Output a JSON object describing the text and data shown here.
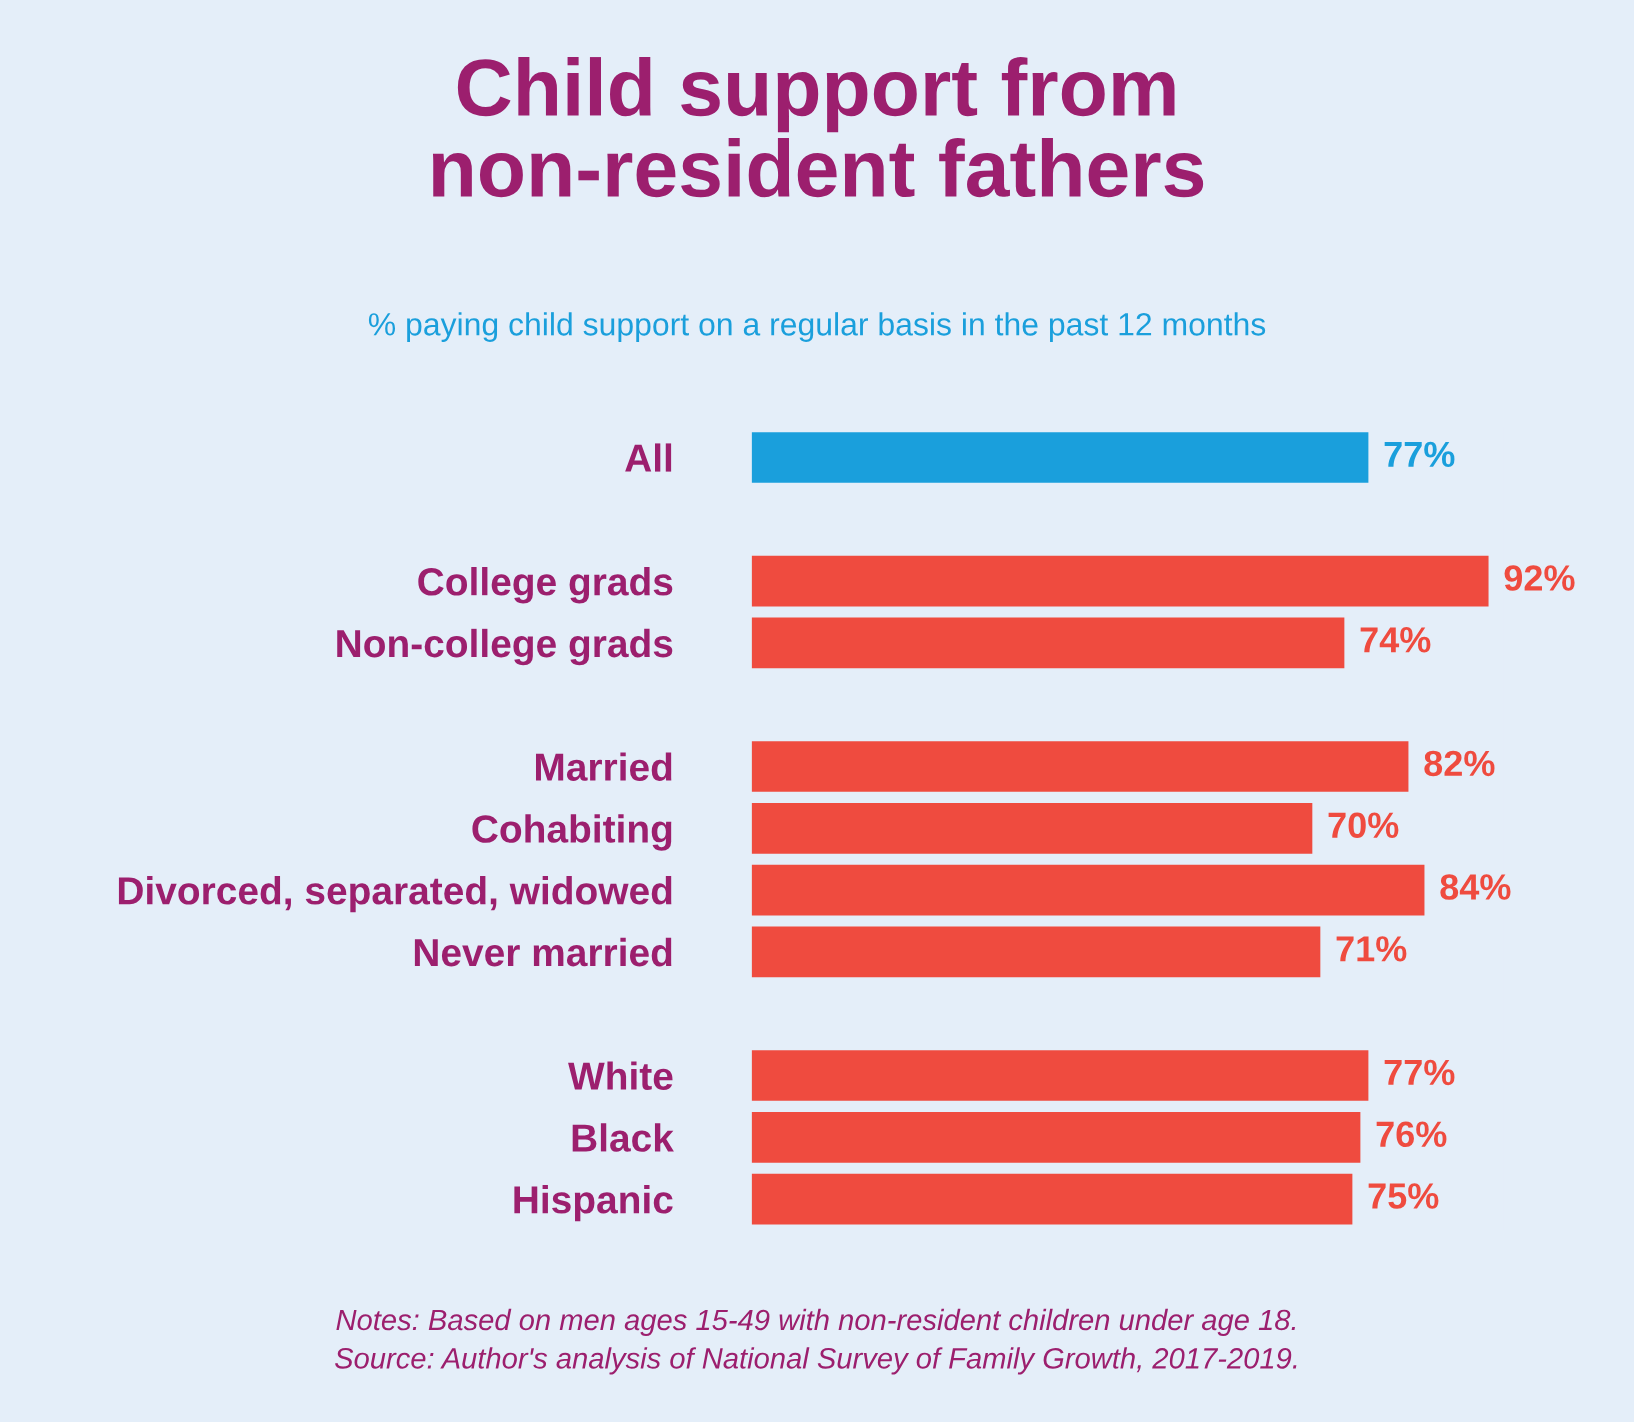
{
  "chart_data": {
    "type": "bar",
    "orientation": "horizontal",
    "title": "Child support from\nnon-resident fathers",
    "subtitle": "% paying child support on a regular basis in the past 12 months",
    "categories": [
      "All",
      null,
      "College grads",
      "Non-college grads",
      null,
      "Married",
      "Cohabiting",
      "Divorced, separated, widowed",
      "Never married",
      null,
      "White",
      "Black",
      "Hispanic"
    ],
    "values": [
      77,
      null,
      92,
      74,
      null,
      82,
      70,
      84,
      71,
      null,
      77,
      76,
      75
    ],
    "value_labels": [
      "77%",
      null,
      "92%",
      "74%",
      null,
      "82%",
      "70%",
      "84%",
      "71%",
      null,
      "77%",
      "76%",
      "75%"
    ],
    "colors": [
      "#1a9fdc",
      null,
      "#ef4b3f",
      "#ef4b3f",
      null,
      "#ef4b3f",
      "#ef4b3f",
      "#ef4b3f",
      "#ef4b3f",
      null,
      "#ef4b3f",
      "#ef4b3f",
      "#ef4b3f"
    ],
    "annotations": [
      "Notes: Based on men ages 15-49 with non-resident children under age 18.",
      "Source: Author's analysis of National Survey of Family Growth, 2017-2019."
    ],
    "grid": false,
    "legend": false
  }
}
